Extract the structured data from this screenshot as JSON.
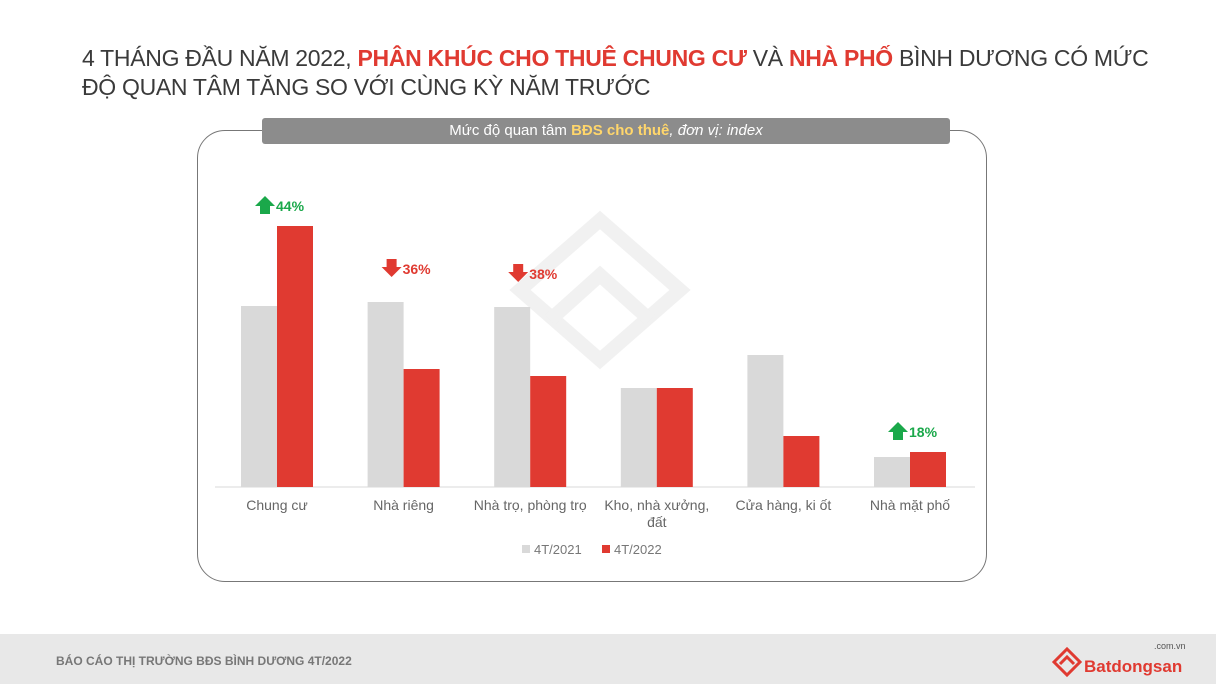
{
  "title": {
    "part1": "4 THÁNG ĐẦU NĂM 2022, ",
    "hl1": "PHÂN KHÚC CHO THUÊ CHUNG CƯ",
    "part2": " VÀ ",
    "hl2": "NHÀ PHỐ",
    "part3": " BÌNH DƯƠNG CÓ MỨC ĐỘ QUAN TÂM TĂNG SO VỚI CÙNG KỲ NĂM TRƯỚC"
  },
  "chart_header": {
    "part1": "Mức độ quan tâm ",
    "highlight": "BĐS cho thuê",
    "part2": ", đơn vị: index"
  },
  "chart_data": {
    "type": "bar",
    "categories": [
      "Chung cư",
      "Nhà riêng",
      "Nhà trọ, phòng trọ",
      "Kho, nhà xưởng, đất",
      "Cửa hàng, ki ốt",
      "Nhà mặt phố"
    ],
    "series": [
      {
        "name": "4T/2021",
        "color": "#d9d9d9",
        "values": [
          181,
          185,
          180,
          99,
          132,
          30
        ]
      },
      {
        "name": "4T/2022",
        "color": "#e03a31",
        "values": [
          261,
          118,
          111,
          99,
          51,
          35
        ]
      }
    ],
    "annotations": [
      {
        "category": "Chung cư",
        "label": "44%",
        "direction": "up",
        "color": "#1aa84a"
      },
      {
        "category": "Nhà riêng",
        "label": "36%",
        "direction": "down",
        "color": "#e03a31"
      },
      {
        "category": "Nhà trọ, phòng trọ",
        "label": "38%",
        "direction": "down",
        "color": "#e03a31"
      },
      {
        "category": "Nhà mặt phố",
        "label": "18%",
        "direction": "up",
        "color": "#1aa84a"
      }
    ],
    "legend": "bottom",
    "grid": false,
    "y_axis_visible": false
  },
  "footer": {
    "text": "BÁO CÁO THỊ TRƯỜNG BĐS BÌNH DƯƠNG 4T/2022",
    "logo": "Batdongsan.com.vn"
  }
}
